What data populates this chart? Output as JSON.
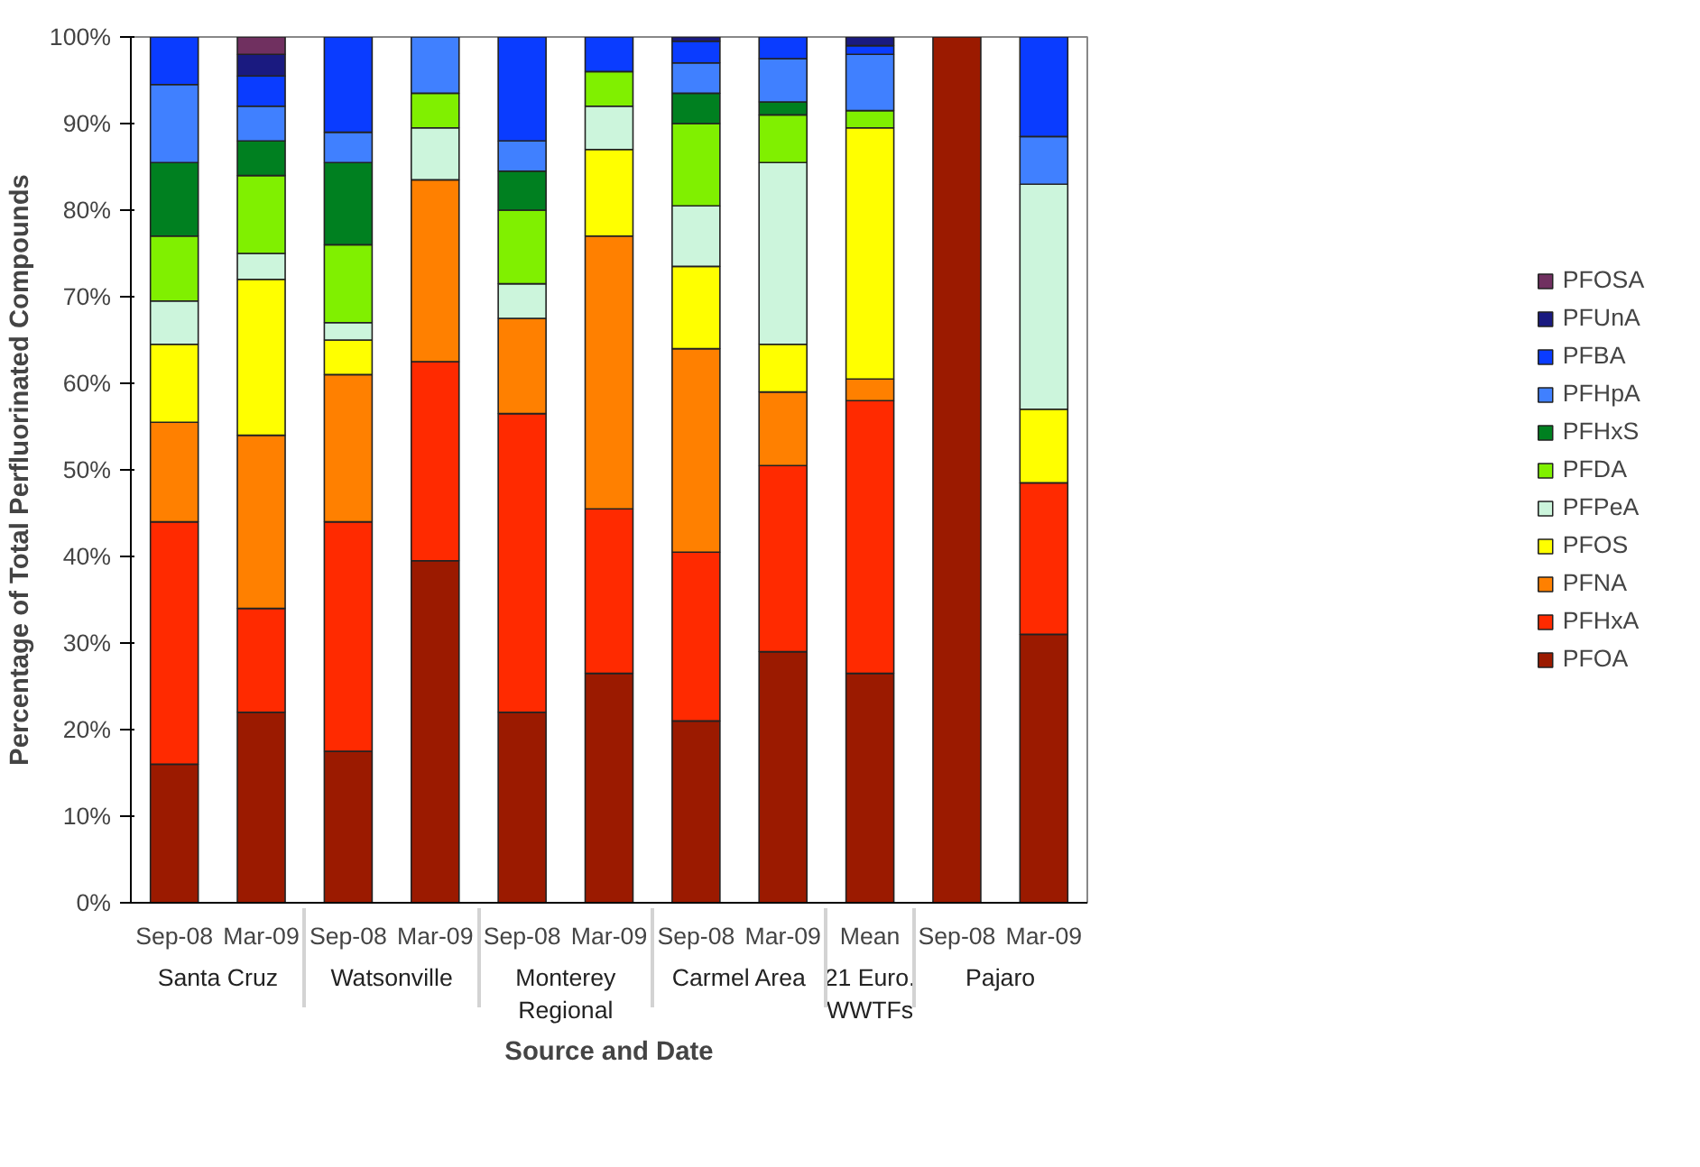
{
  "chart_data": {
    "type": "bar",
    "stacked": true,
    "xlabel": "Source and Date",
    "ylabel": "Percentage of Total Perfluorinated Compounds",
    "categories": [
      [
        "Santa Cruz",
        "Sep-08"
      ],
      [
        null,
        "Mar-09"
      ],
      [
        "Watsonville",
        "Sep-08"
      ],
      [
        null,
        "Mar-09"
      ],
      [
        "Monterey Regional",
        "Sep-08"
      ],
      [
        null,
        "Mar-09"
      ],
      [
        "Carmel Area",
        "Sep-08"
      ],
      [
        null,
        "Mar-09"
      ],
      [
        "21 Euro. WWTFs",
        "Mean"
      ],
      [
        "Pajaro",
        "Sep-08"
      ],
      [
        null,
        "Mar-09"
      ]
    ],
    "series": [
      {
        "name": "PFOA",
        "color": "#9b1a00",
        "values": [
          16,
          22,
          17.5,
          39.5,
          22,
          26.5,
          21,
          29,
          26.5,
          100,
          31
        ]
      },
      {
        "name": "PFHxA",
        "color": "#ff2a00",
        "values": [
          28,
          12,
          26.5,
          23,
          34.5,
          19,
          19.5,
          21.5,
          31.5,
          0,
          17.5
        ]
      },
      {
        "name": "PFNA",
        "color": "#ff8000",
        "values": [
          11.5,
          20,
          17,
          21,
          11,
          31.5,
          23.5,
          8.5,
          2.5,
          0,
          0
        ]
      },
      {
        "name": "PFOS",
        "color": "#ffff00",
        "values": [
          9,
          18,
          4,
          0,
          0,
          10,
          9.5,
          5.5,
          29,
          0,
          8.5
        ]
      },
      {
        "name": "PFPeA",
        "color": "#ccf5dc",
        "values": [
          5,
          3,
          2,
          6,
          4,
          5,
          7,
          21,
          0,
          0,
          26
        ]
      },
      {
        "name": "PFDA",
        "color": "#80f000",
        "values": [
          7.5,
          9,
          9,
          4,
          8.5,
          4,
          9.5,
          5.5,
          2,
          0,
          0
        ]
      },
      {
        "name": "PFHxS",
        "color": "#008020",
        "values": [
          8.5,
          4,
          9.5,
          0,
          4.5,
          0,
          3.5,
          1.5,
          0,
          0,
          0
        ]
      },
      {
        "name": "PFHpA",
        "color": "#4080ff",
        "values": [
          9,
          4,
          3.5,
          6.5,
          3.5,
          0,
          3.5,
          5,
          6.5,
          0,
          5.5
        ]
      },
      {
        "name": "PFBA",
        "color": "#0a3cff",
        "values": [
          5.5,
          3.5,
          11,
          0,
          12,
          4,
          2.5,
          2.5,
          1,
          0,
          11.5
        ]
      },
      {
        "name": "PFUnA",
        "color": "#1a1a80",
        "values": [
          0,
          2.5,
          0,
          0,
          0,
          0,
          0.5,
          0,
          1,
          0,
          0
        ]
      },
      {
        "name": "PFOSA",
        "color": "#703060",
        "values": [
          0,
          2,
          0,
          0,
          0,
          0,
          0,
          0,
          0,
          0,
          0
        ]
      }
    ],
    "ylim": [
      0,
      100
    ],
    "yticks": [
      {
        "value": 0,
        "label": "0%"
      },
      {
        "value": 10,
        "label": "10%"
      },
      {
        "value": 20,
        "label": "20%"
      },
      {
        "value": 30,
        "label": "30%"
      },
      {
        "value": 40,
        "label": "40%"
      },
      {
        "value": 50,
        "label": "50%"
      },
      {
        "value": 60,
        "label": "60%"
      },
      {
        "value": 70,
        "label": "70%"
      },
      {
        "value": 80,
        "label": "80%"
      },
      {
        "value": 90,
        "label": "90%"
      },
      {
        "value": 100,
        "label": "100%"
      }
    ],
    "grid": false,
    "legend": "right"
  }
}
